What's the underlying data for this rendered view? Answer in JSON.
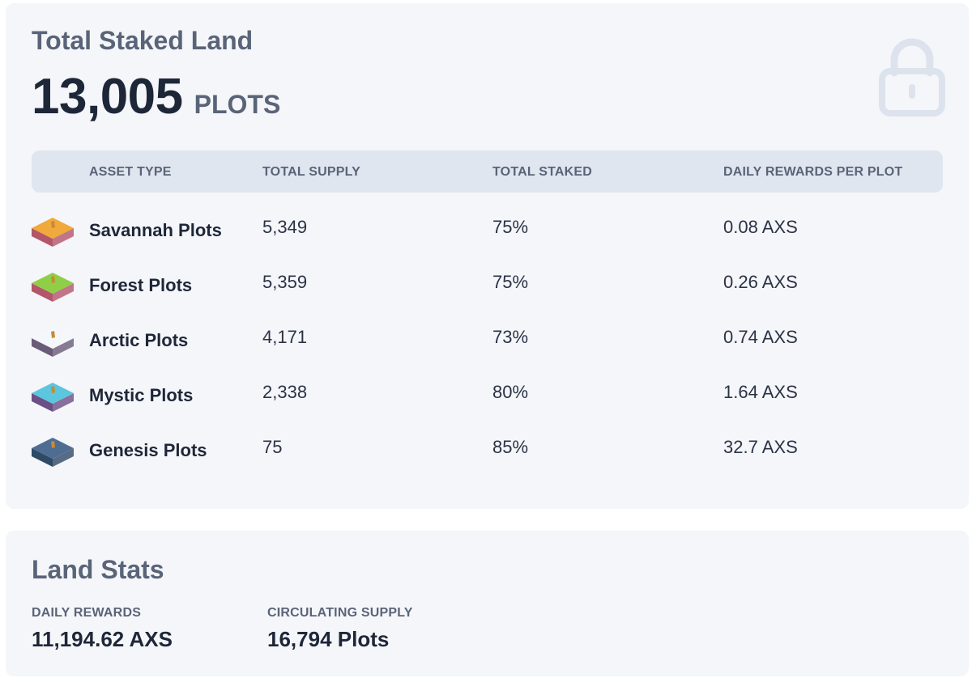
{
  "staked": {
    "title": "Total Staked Land",
    "value": "13,005",
    "unit": "PLOTS",
    "lock_icon": "lock-icon",
    "columns": {
      "asset_type": "ASSET TYPE",
      "total_supply": "TOTAL SUPPLY",
      "total_staked": "TOTAL STAKED",
      "daily_rewards": "DAILY REWARDS PER PLOT"
    },
    "rows": [
      {
        "name": "Savannah Plots",
        "supply": "5,349",
        "staked": "75%",
        "rewards": "0.08 AXS",
        "icon": "savannah-plot-icon",
        "top_color": "#f0a93a",
        "side_color": "#b4566a"
      },
      {
        "name": "Forest Plots",
        "supply": "5,359",
        "staked": "75%",
        "rewards": "0.26 AXS",
        "icon": "forest-plot-icon",
        "top_color": "#8fcf48",
        "side_color": "#b4566a"
      },
      {
        "name": "Arctic Plots",
        "supply": "4,171",
        "staked": "73%",
        "rewards": "0.74 AXS",
        "icon": "arctic-plot-icon",
        "top_color": "#f4f7fb",
        "side_color": "#6a5c78"
      },
      {
        "name": "Mystic Plots",
        "supply": "2,338",
        "staked": "80%",
        "rewards": "1.64 AXS",
        "icon": "mystic-plot-icon",
        "top_color": "#5bc6dd",
        "side_color": "#6b4f86"
      },
      {
        "name": "Genesis Plots",
        "supply": "75",
        "staked": "85%",
        "rewards": "32.7 AXS",
        "icon": "genesis-plot-icon",
        "top_color": "#4f6d92",
        "side_color": "#2f4a66"
      }
    ]
  },
  "land_stats": {
    "title": "Land Stats",
    "daily_rewards_label": "DAILY REWARDS",
    "daily_rewards_value": "11,194.62 AXS",
    "circulating_supply_label": "CIRCULATING SUPPLY",
    "circulating_supply_value": "16,794 Plots"
  }
}
